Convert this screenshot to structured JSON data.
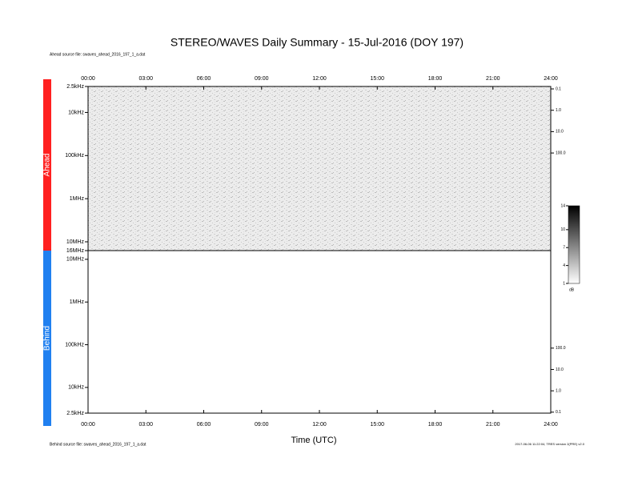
{
  "chart_data": {
    "type": "spectrogram",
    "title": "STEREO/WAVES Daily Summary - 15-Jul-2016 (DOY 197)",
    "notes": [
      "Ahead source file: swaves_ahead_2016_197_1_a.dat",
      "Behind source file: swaves_ahead_2016_197_1_a.dat",
      "2017-06-06 11:22:04, TRES version 2(PRE) v2.0"
    ],
    "xlabel": "Time (UTC)",
    "xlim": [
      0,
      24
    ],
    "xticks": [
      {
        "value": 0,
        "label": "00:00"
      },
      {
        "value": 3,
        "label": "03:00"
      },
      {
        "value": 6,
        "label": "06:00"
      },
      {
        "value": 9,
        "label": "09:00"
      },
      {
        "value": 12,
        "label": "12:00"
      },
      {
        "value": 15,
        "label": "15:00"
      },
      {
        "value": 18,
        "label": "18:00"
      },
      {
        "value": 21,
        "label": "21:00"
      },
      {
        "value": 24,
        "label": "24:00"
      }
    ],
    "log_scale": true,
    "panels": [
      {
        "name": "Ahead",
        "color": "#ff2020",
        "ylim": [
          2.5,
          16000
        ],
        "y2lim": [
          0.077,
          3700000
        ],
        "yticks": [
          {
            "value": 2.5,
            "label": "2.5kHz"
          },
          {
            "value": 10,
            "label": "10kHz"
          },
          {
            "value": 100,
            "label": "100kHz"
          },
          {
            "value": 1000,
            "label": "1MHz"
          },
          {
            "value": 10000,
            "label": "10MHz"
          },
          {
            "value": 16000,
            "label": "16MHz"
          }
        ],
        "y2ticks": [
          0.1,
          {
            "value": 1,
            "label": "1.0"
          },
          {
            "value": 10,
            "label": "10.0"
          },
          {
            "value": 100,
            "label": "100.0"
          }
        ]
      },
      {
        "name": "Behind",
        "color": "#2080f0",
        "ylim": [
          16000,
          2.5
        ],
        "y2lim": [
          3700000,
          0.09
        ],
        "yticks": [
          {
            "value": 10000,
            "label": "10MHz"
          },
          {
            "value": 1000,
            "label": "1MHz"
          },
          {
            "value": 100,
            "label": "100kHz"
          },
          {
            "value": 10,
            "label": "10kHz"
          },
          {
            "value": 2.5,
            "label": "2.5kHz"
          }
        ],
        "y2ticks": [
          {
            "value": 100,
            "label": "100.0"
          },
          {
            "value": 10,
            "label": "10.0"
          },
          {
            "value": 1,
            "label": "1.0"
          },
          0.1
        ]
      }
    ],
    "colorbar": {
      "zlim": [
        1,
        14
      ],
      "zticks": [
        1,
        4,
        7,
        10,
        14
      ],
      "label": "dB"
    }
  }
}
